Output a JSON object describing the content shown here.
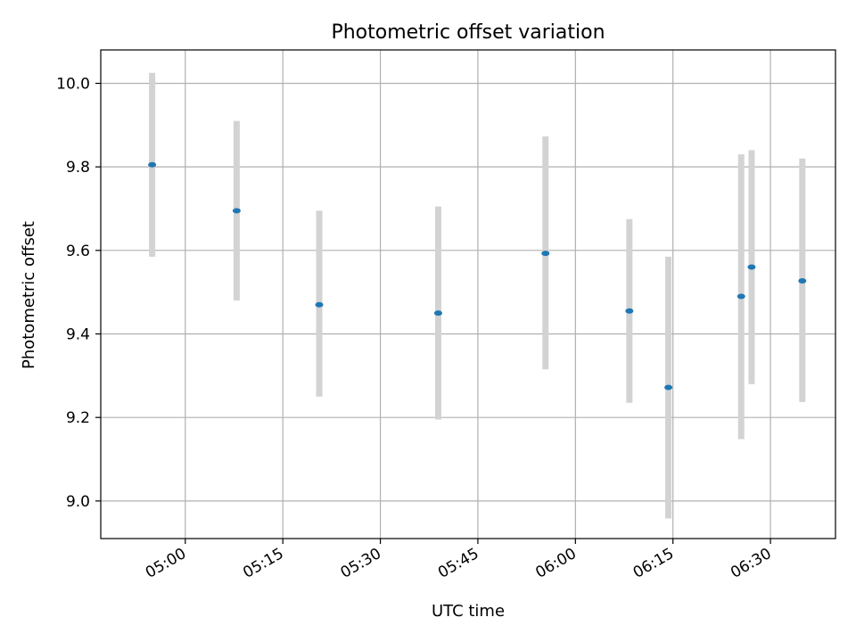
{
  "chart_data": {
    "type": "scatter",
    "title": "Photometric offset variation",
    "xlabel": "UTC time",
    "ylabel": "Photometric offset",
    "x_ticks": [
      "05:00",
      "05:15",
      "05:30",
      "05:45",
      "06:00",
      "06:15",
      "06:30"
    ],
    "y_ticks": [
      "9.0",
      "9.2",
      "9.4",
      "9.6",
      "9.8",
      "10.0"
    ],
    "xlim": [
      "04:47",
      "06:40"
    ],
    "ylim": [
      8.91,
      10.08
    ],
    "grid": true,
    "colors": {
      "point": "#1f77b4",
      "errorbar": "#d3d3d3"
    },
    "points": [
      {
        "time": "04:54.9",
        "value": 9.805,
        "low": 9.585,
        "high": 10.025
      },
      {
        "time": "05:07.9",
        "value": 9.695,
        "low": 9.48,
        "high": 9.91
      },
      {
        "time": "05:20.6",
        "value": 9.47,
        "low": 9.25,
        "high": 9.695
      },
      {
        "time": "05:38.9",
        "value": 9.45,
        "low": 9.195,
        "high": 9.705
      },
      {
        "time": "05:55.4",
        "value": 9.593,
        "low": 9.315,
        "high": 9.873
      },
      {
        "time": "06:08.3",
        "value": 9.455,
        "low": 9.235,
        "high": 9.675
      },
      {
        "time": "06:14.3",
        "value": 9.272,
        "low": 8.958,
        "high": 9.585
      },
      {
        "time": "06:25.5",
        "value": 9.49,
        "low": 9.148,
        "high": 9.83
      },
      {
        "time": "06:27.1",
        "value": 9.56,
        "low": 9.28,
        "high": 9.84
      },
      {
        "time": "06:34.9",
        "value": 9.527,
        "low": 9.237,
        "high": 9.82
      }
    ]
  }
}
